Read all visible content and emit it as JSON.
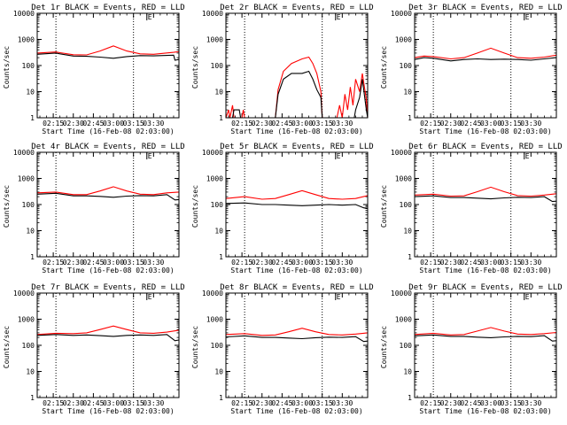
{
  "chart_data": {
    "type": "line",
    "subplot_grid": [
      3,
      3
    ],
    "shared": {
      "xlabel": "Start Time (16-Feb-08 02:03:00)",
      "ylabel": "Counts/sec",
      "yscale": "log",
      "ylim": [
        1,
        10000
      ],
      "ytick_labels": [
        "1",
        "10",
        "100",
        "1000",
        "10000"
      ],
      "xrange_min": [
        123,
        229
      ],
      "xtick_min": [
        135,
        150,
        165,
        180,
        195,
        210
      ],
      "xtick_labels": [
        "02:15",
        "02:30",
        "02:45",
        "03:00",
        "03:15",
        "03:30"
      ],
      "dotted_lines_min": [
        137,
        195
      ],
      "top_marker": "E",
      "top_marker_min": 205,
      "colors": {
        "events": "#000000",
        "lld": "#ff0000",
        "axes": "#000000"
      }
    },
    "panels": [
      {
        "title": "Det 1r BLACK = Events, RED = LLD",
        "series": [
          {
            "color": "#ff0000",
            "x": [
              123,
              137,
              140,
              150,
              160,
              170,
              180,
              190,
              200,
              210,
              225,
              229
            ],
            "y": [
              300,
              330,
              310,
              260,
              255,
              360,
              560,
              360,
              280,
              270,
              320,
              340
            ]
          },
          {
            "color": "#000000",
            "x": [
              123,
              137,
              140,
              150,
              160,
              170,
              180,
              190,
              200,
              210,
              225,
              226,
              229
            ],
            "y": [
              270,
              300,
              280,
              230,
              225,
              210,
              190,
              220,
              240,
              235,
              250,
              160,
              170
            ]
          }
        ]
      },
      {
        "title": "Det 2r BLACK = Events, RED = LLD",
        "series": [
          {
            "color": "#ff0000",
            "x": [
              123,
              125,
              126,
              128,
              129,
              135,
              136,
              137,
              160,
              162,
              166,
              172,
              180,
              185,
              188,
              191,
              194,
              195,
              206,
              208,
              210,
              212,
              214,
              216,
              218,
              220,
              223,
              225,
              228,
              229
            ],
            "y": [
              1,
              2,
              1,
              3,
              1,
              1,
              2,
              1,
              1,
              12,
              60,
              120,
              180,
              210,
              120,
              50,
              10,
              1,
              1,
              3,
              1,
              8,
              2,
              15,
              3,
              30,
              10,
              50,
              5,
              1
            ]
          },
          {
            "color": "#000000",
            "x": [
              123,
              128,
              129,
              133,
              134,
              160,
              162,
              166,
              172,
              180,
              185,
              188,
              191,
              194,
              195,
              219,
              220,
              223,
              225,
              228,
              229
            ],
            "y": [
              1,
              1,
              2,
              2,
              1,
              1,
              8,
              30,
              50,
              50,
              60,
              30,
              12,
              6,
              1,
              1,
              2,
              6,
              30,
              2,
              1
            ]
          }
        ]
      },
      {
        "title": "Det 3r BLACK = Events, RED = LLD",
        "series": [
          {
            "color": "#ff0000",
            "x": [
              123,
              130,
              137,
              150,
              160,
              170,
              180,
              190,
              200,
              210,
              220,
              229
            ],
            "y": [
              200,
              230,
              220,
              180,
              200,
              300,
              460,
              300,
              200,
              190,
              210,
              250
            ]
          },
          {
            "color": "#000000",
            "x": [
              123,
              130,
              137,
              150,
              160,
              170,
              180,
              190,
              200,
              210,
              220,
              229
            ],
            "y": [
              170,
              200,
              190,
              150,
              170,
              180,
              170,
              175,
              170,
              160,
              180,
              200
            ]
          }
        ]
      },
      {
        "title": "Det 4r BLACK = Events, RED = LLD",
        "series": [
          {
            "color": "#ff0000",
            "x": [
              123,
              137,
              150,
              160,
              170,
              180,
              190,
              200,
              210,
              220,
              229
            ],
            "y": [
              280,
              300,
              240,
              240,
              330,
              480,
              330,
              250,
              240,
              280,
              300
            ]
          },
          {
            "color": "#000000",
            "x": [
              123,
              137,
              150,
              160,
              170,
              180,
              190,
              200,
              210,
              220,
              226,
              229
            ],
            "y": [
              250,
              270,
              215,
              215,
              205,
              190,
              210,
              220,
              215,
              240,
              150,
              155
            ]
          }
        ]
      },
      {
        "title": "Det 5r BLACK = Events, RED = LLD",
        "series": [
          {
            "color": "#ff0000",
            "x": [
              123,
              137,
              150,
              160,
              170,
              180,
              190,
              200,
              210,
              220,
              229
            ],
            "y": [
              170,
              200,
              160,
              170,
              240,
              340,
              240,
              170,
              160,
              170,
              220
            ]
          },
          {
            "color": "#000000",
            "x": [
              123,
              137,
              150,
              160,
              170,
              180,
              190,
              200,
              210,
              220,
              226,
              229
            ],
            "y": [
              110,
              115,
              100,
              100,
              95,
              90,
              95,
              100,
              95,
              100,
              75,
              70
            ]
          }
        ]
      },
      {
        "title": "Det 6r BLACK = Events, RED = LLD",
        "series": [
          {
            "color": "#ff0000",
            "x": [
              123,
              137,
              150,
              160,
              170,
              180,
              190,
              200,
              210,
              220,
              229
            ],
            "y": [
              230,
              250,
              210,
              215,
              310,
              460,
              310,
              220,
              210,
              230,
              260
            ]
          },
          {
            "color": "#000000",
            "x": [
              123,
              137,
              150,
              160,
              170,
              180,
              190,
              200,
              210,
              220,
              226,
              229
            ],
            "y": [
              200,
              215,
              185,
              185,
              175,
              165,
              180,
              190,
              185,
              200,
              130,
              135
            ]
          }
        ]
      },
      {
        "title": "Det 7r BLACK = Events, RED = LLD",
        "series": [
          {
            "color": "#ff0000",
            "x": [
              123,
              137,
              150,
              160,
              170,
              180,
              190,
              200,
              210,
              220,
              229
            ],
            "y": [
              260,
              290,
              280,
              300,
              400,
              550,
              400,
              300,
              290,
              320,
              380
            ]
          },
          {
            "color": "#000000",
            "x": [
              123,
              137,
              150,
              160,
              170,
              180,
              190,
              200,
              210,
              220,
              226,
              229
            ],
            "y": [
              240,
              260,
              240,
              250,
              235,
              220,
              240,
              250,
              240,
              260,
              150,
              160
            ]
          }
        ]
      },
      {
        "title": "Det 8r BLACK = Events, RED = LLD",
        "series": [
          {
            "color": "#ff0000",
            "x": [
              123,
              137,
              150,
              160,
              170,
              180,
              190,
              200,
              210,
              220,
              229
            ],
            "y": [
              260,
              280,
              240,
              250,
              330,
              450,
              330,
              260,
              250,
              270,
              300
            ]
          },
          {
            "color": "#000000",
            "x": [
              123,
              137,
              150,
              160,
              170,
              180,
              190,
              200,
              210,
              220,
              226,
              229
            ],
            "y": [
              210,
              230,
              200,
              200,
              190,
              180,
              195,
              205,
              200,
              215,
              140,
              145
            ]
          }
        ]
      },
      {
        "title": "Det 9r BLACK = Events, RED = LLD",
        "series": [
          {
            "color": "#ff0000",
            "x": [
              123,
              137,
              150,
              160,
              170,
              180,
              190,
              200,
              210,
              220,
              229
            ],
            "y": [
              260,
              290,
              250,
              260,
              350,
              480,
              350,
              270,
              260,
              280,
              310
            ]
          },
          {
            "color": "#000000",
            "x": [
              123,
              137,
              150,
              160,
              170,
              180,
              190,
              200,
              210,
              220,
              226,
              229
            ],
            "y": [
              230,
              250,
              220,
              220,
              205,
              195,
              210,
              220,
              215,
              235,
              145,
              150
            ]
          }
        ]
      }
    ]
  }
}
